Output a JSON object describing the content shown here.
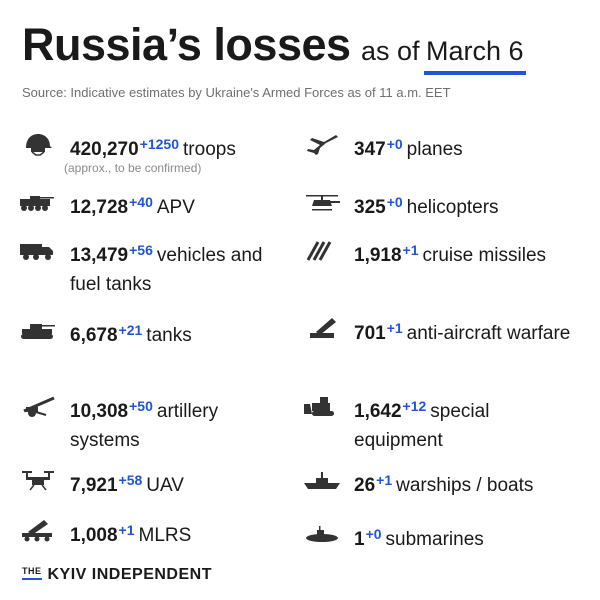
{
  "header": {
    "title": "Russia’s losses",
    "as_of": "as of",
    "date": "March 6",
    "source": "Source: Indicative estimates by Ukraine's Armed Forces as of 11 a.m. EET"
  },
  "left_items": [
    {
      "value": "420,270",
      "delta": "+1250",
      "label": "troops",
      "note": "(approx., to be confirmed)",
      "icon": "soldier-helmet-icon"
    },
    {
      "value": "12,728",
      "delta": "+40",
      "label": "APV",
      "icon": "apv-icon"
    },
    {
      "value": "13,479",
      "delta": "+56",
      "label": "vehicles and fuel tanks",
      "icon": "truck-icon"
    },
    {
      "value": "6,678",
      "delta": "+21",
      "label": "tanks",
      "icon": "tank-icon"
    },
    {
      "value": "10,308",
      "delta": "+50",
      "label": "artillery systems",
      "icon": "artillery-icon"
    },
    {
      "value": "7,921",
      "delta": "+58",
      "label": "UAV",
      "icon": "drone-icon"
    },
    {
      "value": "1,008",
      "delta": "+1",
      "label": "MLRS",
      "icon": "mlrs-icon"
    }
  ],
  "right_items": [
    {
      "value": "347",
      "delta": "+0",
      "label": "planes",
      "icon": "plane-icon"
    },
    {
      "value": "325",
      "delta": "+0",
      "label": "helicopters",
      "icon": "helicopter-icon"
    },
    {
      "value": "1,918",
      "delta": "+1",
      "label": "cruise missiles",
      "icon": "missiles-icon"
    },
    {
      "value": "701",
      "delta": "+1",
      "label": "anti-aircraft warfare",
      "icon": "anti-aircraft-icon"
    },
    {
      "value": "1,642",
      "delta": "+12",
      "label": "special equipment",
      "icon": "bulldozer-icon"
    },
    {
      "value": "26",
      "delta": "+1",
      "label": "warships / boats",
      "icon": "warship-icon"
    },
    {
      "value": "1",
      "delta": "+0",
      "label": "submarines",
      "icon": "submarine-icon"
    }
  ],
  "footer": {
    "the": "THE",
    "name": "KYIV INDEPENDENT"
  },
  "colors": {
    "accent": "#1f55d6",
    "text": "#1a1a1a",
    "muted": "#6f6f6f"
  }
}
